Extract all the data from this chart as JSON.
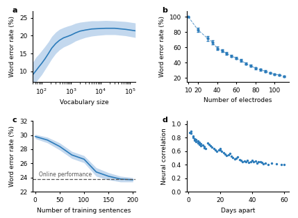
{
  "panel_a": {
    "x_log": [
      50,
      65,
      80,
      100,
      130,
      170,
      220,
      300,
      400,
      550,
      750,
      1000,
      1400,
      2000,
      3000,
      5000,
      8000,
      15000,
      30000,
      70000,
      150000
    ],
    "y_mean": [
      9.0,
      10.2,
      11.2,
      12.2,
      13.5,
      15.0,
      16.5,
      17.8,
      18.7,
      19.4,
      19.8,
      20.2,
      20.8,
      21.3,
      21.6,
      21.9,
      22.0,
      22.1,
      22.1,
      21.8,
      21.4
    ],
    "y_upper": [
      12.5,
      14.0,
      14.8,
      15.8,
      17.0,
      18.3,
      19.8,
      21.0,
      21.8,
      22.3,
      22.7,
      23.0,
      23.5,
      23.8,
      24.0,
      24.2,
      24.2,
      24.3,
      24.2,
      24.0,
      23.6
    ],
    "y_lower": [
      6.0,
      7.0,
      8.0,
      9.0,
      10.5,
      12.0,
      13.5,
      15.0,
      16.0,
      16.8,
      17.3,
      17.8,
      18.5,
      19.0,
      19.5,
      19.9,
      20.1,
      20.3,
      20.3,
      20.0,
      19.5
    ],
    "xlabel": "Vocabulary size",
    "ylabel": "Word error rate (%)",
    "label": "a",
    "line_color": "#2b7bba",
    "fill_color": "#aac8e8",
    "xlim": [
      50,
      150000
    ],
    "ylim": [
      7,
      27
    ],
    "yticks": [
      10,
      15,
      20,
      25
    ]
  },
  "panel_b": {
    "x": [
      10,
      20,
      30,
      35,
      40,
      45,
      50,
      55,
      60,
      65,
      70,
      75,
      80,
      85,
      90,
      95,
      100,
      105,
      110
    ],
    "y": [
      100,
      83,
      72,
      67,
      59,
      56,
      52,
      49,
      46,
      43,
      39,
      36,
      33,
      31,
      29,
      27,
      25,
      24,
      22
    ],
    "yerr": [
      0.3,
      2.5,
      3.2,
      2.5,
      2.0,
      1.8,
      1.8,
      1.5,
      1.5,
      1.5,
      1.5,
      1.3,
      1.3,
      1.2,
      1.2,
      1.0,
      1.0,
      0.8,
      0.8
    ],
    "xlabel": "Number of electrodes",
    "ylabel": "Word error rate (%)",
    "label": "b",
    "line_color": "#2b7bba",
    "xlim": [
      8,
      115
    ],
    "ylim": [
      15,
      108
    ],
    "xticks": [
      10,
      20,
      40,
      60,
      80,
      100
    ],
    "yticks": [
      20,
      40,
      60,
      80,
      100
    ]
  },
  "panel_c": {
    "x": [
      0,
      25,
      50,
      75,
      100,
      125,
      150,
      175,
      200
    ],
    "y_mean": [
      29.8,
      29.3,
      28.4,
      27.2,
      26.6,
      24.8,
      24.2,
      23.8,
      23.7
    ],
    "y_upper": [
      30.1,
      29.7,
      28.9,
      27.7,
      27.1,
      25.4,
      24.7,
      24.2,
      24.0
    ],
    "y_lower": [
      29.5,
      28.9,
      27.9,
      26.7,
      26.1,
      24.2,
      23.7,
      23.4,
      23.4
    ],
    "hline_y": 23.8,
    "hline_label": "Online performance",
    "xlabel": "Number of training sentences",
    "ylabel": "Word error rate (%)",
    "label": "c",
    "line_color": "#2b7bba",
    "fill_color": "#aac8e8",
    "xlim": [
      -5,
      205
    ],
    "ylim": [
      22,
      32
    ],
    "yticks": [
      22,
      24,
      26,
      28,
      30,
      32
    ],
    "xticks": [
      0,
      50,
      100,
      150,
      200
    ]
  },
  "panel_d": {
    "x": [
      1,
      2,
      2,
      3,
      3,
      4,
      4,
      5,
      5,
      6,
      6,
      7,
      7,
      8,
      8,
      9,
      10,
      10,
      11,
      12,
      13,
      14,
      15,
      16,
      17,
      18,
      19,
      20,
      20,
      21,
      22,
      23,
      24,
      25,
      26,
      27,
      28,
      29,
      30,
      31,
      32,
      33,
      34,
      35,
      36,
      37,
      38,
      39,
      40,
      41,
      42,
      43,
      44,
      45,
      46,
      47,
      48,
      50,
      52,
      55,
      58,
      60
    ],
    "y": [
      0.88,
      0.87,
      0.9,
      0.8,
      0.83,
      0.76,
      0.78,
      0.74,
      0.77,
      0.72,
      0.75,
      0.7,
      0.73,
      0.68,
      0.71,
      0.69,
      0.67,
      0.65,
      0.64,
      0.72,
      0.7,
      0.68,
      0.66,
      0.64,
      0.62,
      0.6,
      0.62,
      0.62,
      0.64,
      0.6,
      0.58,
      0.56,
      0.54,
      0.55,
      0.57,
      0.53,
      0.51,
      0.49,
      0.5,
      0.52,
      0.48,
      0.47,
      0.45,
      0.46,
      0.44,
      0.47,
      0.43,
      0.45,
      0.47,
      0.44,
      0.46,
      0.42,
      0.44,
      0.45,
      0.43,
      0.41,
      0.42,
      0.4,
      0.42,
      0.41,
      0.4,
      0.4
    ],
    "xlabel": "Days apart",
    "ylabel": "Neural correlation",
    "label": "d",
    "dot_color": "#2b7bba",
    "xlim": [
      -1,
      63
    ],
    "ylim": [
      0.0,
      1.05
    ],
    "yticks": [
      0.0,
      0.2,
      0.4,
      0.6,
      0.8,
      1.0
    ],
    "xticks": [
      0,
      20,
      40,
      60
    ]
  },
  "background_color": "#ffffff",
  "label_fontsize": 8,
  "tick_fontsize": 6.5,
  "axis_label_fontsize": 6.5
}
